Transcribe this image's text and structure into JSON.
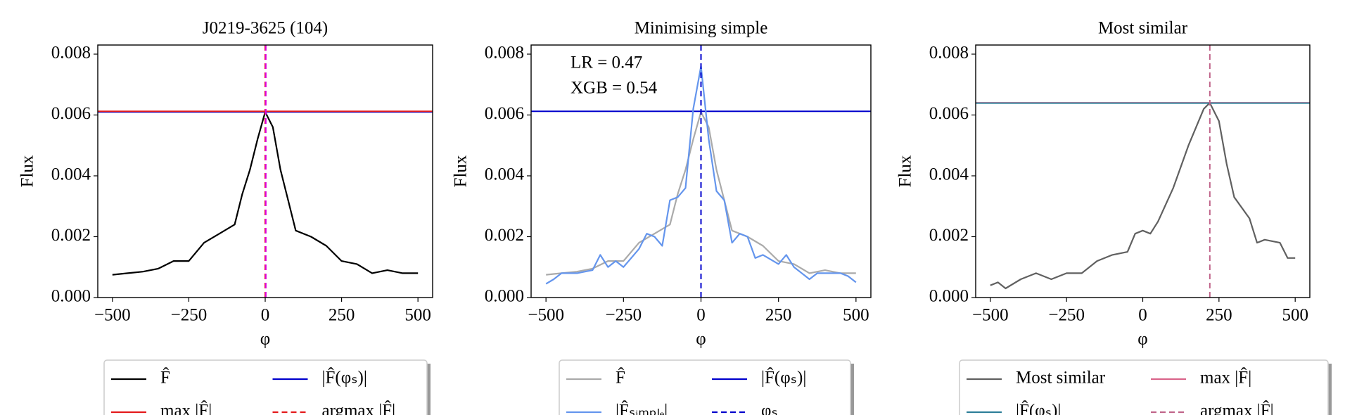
{
  "chart_data": [
    {
      "type": "line",
      "title": "J0219-3625 (104)",
      "xlabel": "φ",
      "ylabel": "Flux",
      "xlim": [
        -548,
        548
      ],
      "ylim": [
        0,
        0.0083
      ],
      "xticks": [
        {
          "value": -500,
          "label": "−500"
        },
        {
          "value": -250,
          "label": "−250"
        },
        0,
        250,
        500
      ],
      "yticks": [
        {
          "value": 0,
          "label": "0.000"
        },
        {
          "value": 0.002,
          "label": "0.002"
        },
        {
          "value": 0.004,
          "label": "0.004"
        },
        {
          "value": 0.006,
          "label": "0.006"
        },
        {
          "value": 0.008,
          "label": "0.008"
        }
      ],
      "series": [
        {
          "name": "F̂",
          "kind": "curve",
          "color": "#000000",
          "linestyle": "solid",
          "x": [
            -500,
            -450,
            -400,
            -350,
            -300,
            -250,
            -200,
            -150,
            -100,
            -75,
            -50,
            -25,
            0,
            25,
            50,
            75,
            100,
            150,
            200,
            250,
            300,
            350,
            400,
            450,
            500
          ],
          "values": [
            0.00075,
            0.0008,
            0.00085,
            0.00095,
            0.0012,
            0.0012,
            0.0018,
            0.0021,
            0.0024,
            0.0034,
            0.0042,
            0.0052,
            0.0061,
            0.0056,
            0.0042,
            0.0032,
            0.0022,
            0.002,
            0.0017,
            0.0012,
            0.0011,
            0.0008,
            0.0009,
            0.0008,
            0.0008
          ]
        },
        {
          "name": "|F̂(φₛ)|",
          "kind": "hline",
          "color": "#0000cc",
          "linestyle": "solid",
          "value": 0.0061
        },
        {
          "name": "max |F̂|",
          "kind": "hline",
          "color": "#e41a1c",
          "linestyle": "solid",
          "value": 0.00612
        },
        {
          "name": "argmax |F̂|",
          "kind": "vline",
          "color": "#e41a1c",
          "linestyle": "dashed",
          "value": 0
        },
        {
          "kind": "vline",
          "color": "#dd00dd",
          "linestyle": "dashed",
          "value": 2
        }
      ]
    },
    {
      "type": "line",
      "title": "Minimising simple",
      "xlabel": "φ",
      "ylabel": "Flux",
      "annotations": [
        "LR = 0.47",
        "XGB = 0.54"
      ],
      "xlim": [
        -548,
        548
      ],
      "ylim": [
        0,
        0.0083
      ],
      "xticks": [
        {
          "value": -500,
          "label": "−500"
        },
        {
          "value": -250,
          "label": "−250"
        },
        0,
        250,
        500
      ],
      "yticks": [
        {
          "value": 0,
          "label": "0.000"
        },
        {
          "value": 0.002,
          "label": "0.002"
        },
        {
          "value": 0.004,
          "label": "0.004"
        },
        {
          "value": 0.006,
          "label": "0.006"
        },
        {
          "value": 0.008,
          "label": "0.008"
        }
      ],
      "series": [
        {
          "name": "F̂",
          "kind": "curve",
          "color": "#aaaaaa",
          "linestyle": "solid",
          "x": [
            -500,
            -450,
            -400,
            -350,
            -300,
            -250,
            -200,
            -150,
            -100,
            -75,
            -50,
            -25,
            0,
            25,
            50,
            75,
            100,
            150,
            200,
            250,
            300,
            350,
            400,
            450,
            500
          ],
          "values": [
            0.00075,
            0.0008,
            0.00085,
            0.00095,
            0.0012,
            0.0012,
            0.0018,
            0.0021,
            0.0024,
            0.0034,
            0.0042,
            0.0052,
            0.0061,
            0.0056,
            0.0042,
            0.0032,
            0.0022,
            0.002,
            0.0017,
            0.0012,
            0.0011,
            0.0008,
            0.0009,
            0.0008,
            0.0008
          ]
        },
        {
          "name": "|F̂(φₛ)|",
          "kind": "hline",
          "color": "#0000cc",
          "linestyle": "solid",
          "value": 0.00612
        },
        {
          "name": "|F̂ₛᵢₘₚₗₑ|",
          "kind": "curve",
          "color": "#6495ed",
          "linestyle": "solid",
          "x": [
            -500,
            -475,
            -450,
            -400,
            -350,
            -325,
            -300,
            -275,
            -250,
            -200,
            -175,
            -150,
            -125,
            -100,
            -75,
            -50,
            -25,
            0,
            25,
            50,
            75,
            100,
            125,
            150,
            175,
            200,
            250,
            275,
            300,
            350,
            375,
            400,
            450,
            475,
            500
          ],
          "values": [
            0.00045,
            0.0006,
            0.0008,
            0.0008,
            0.0009,
            0.0014,
            0.001,
            0.0012,
            0.001,
            0.0016,
            0.0021,
            0.002,
            0.0017,
            0.0032,
            0.0033,
            0.0036,
            0.0062,
            0.0076,
            0.0052,
            0.0035,
            0.0032,
            0.0018,
            0.0021,
            0.002,
            0.0013,
            0.0014,
            0.0011,
            0.0014,
            0.001,
            0.0006,
            0.0008,
            0.0008,
            0.0008,
            0.0007,
            0.0005
          ]
        },
        {
          "name": "φₛ",
          "kind": "vline",
          "color": "#0000cc",
          "linestyle": "dashed",
          "value": 0
        }
      ]
    },
    {
      "type": "line",
      "title": "Most similar",
      "xlabel": "φ",
      "ylabel": "Flux",
      "xlim": [
        -548,
        548
      ],
      "ylim": [
        0,
        0.0083
      ],
      "xticks": [
        {
          "value": -500,
          "label": "−500"
        },
        {
          "value": -250,
          "label": "−250"
        },
        0,
        250,
        500
      ],
      "yticks": [
        {
          "value": 0,
          "label": "0.000"
        },
        {
          "value": 0.002,
          "label": "0.002"
        },
        {
          "value": 0.004,
          "label": "0.004"
        },
        {
          "value": 0.006,
          "label": "0.006"
        },
        {
          "value": 0.008,
          "label": "0.008"
        }
      ],
      "series": [
        {
          "name": "Most similar",
          "kind": "curve",
          "color": "#606060",
          "linestyle": "solid",
          "x": [
            -500,
            -475,
            -450,
            -400,
            -350,
            -300,
            -250,
            -200,
            -150,
            -100,
            -50,
            -25,
            0,
            25,
            50,
            100,
            150,
            200,
            220,
            250,
            275,
            300,
            350,
            375,
            400,
            450,
            475,
            500
          ],
          "values": [
            0.0004,
            0.0005,
            0.0003,
            0.0006,
            0.0008,
            0.0006,
            0.0008,
            0.0008,
            0.0012,
            0.0014,
            0.0015,
            0.0021,
            0.0022,
            0.0021,
            0.0025,
            0.0036,
            0.005,
            0.0062,
            0.0064,
            0.0058,
            0.0044,
            0.0033,
            0.0026,
            0.0018,
            0.0019,
            0.0018,
            0.0013,
            0.0013
          ]
        },
        {
          "name": "max |F̂|",
          "kind": "hline",
          "color": "#d9658a",
          "linestyle": "solid",
          "value": 0.0064
        },
        {
          "name": "|F̂(φₛ)|",
          "kind": "hline",
          "color": "#2f7f99",
          "linestyle": "solid",
          "value": 0.00639
        },
        {
          "name": "argmax |F̂|",
          "kind": "vline",
          "color": "#c0648a",
          "linestyle": "dashed",
          "value": 220
        }
      ]
    }
  ]
}
